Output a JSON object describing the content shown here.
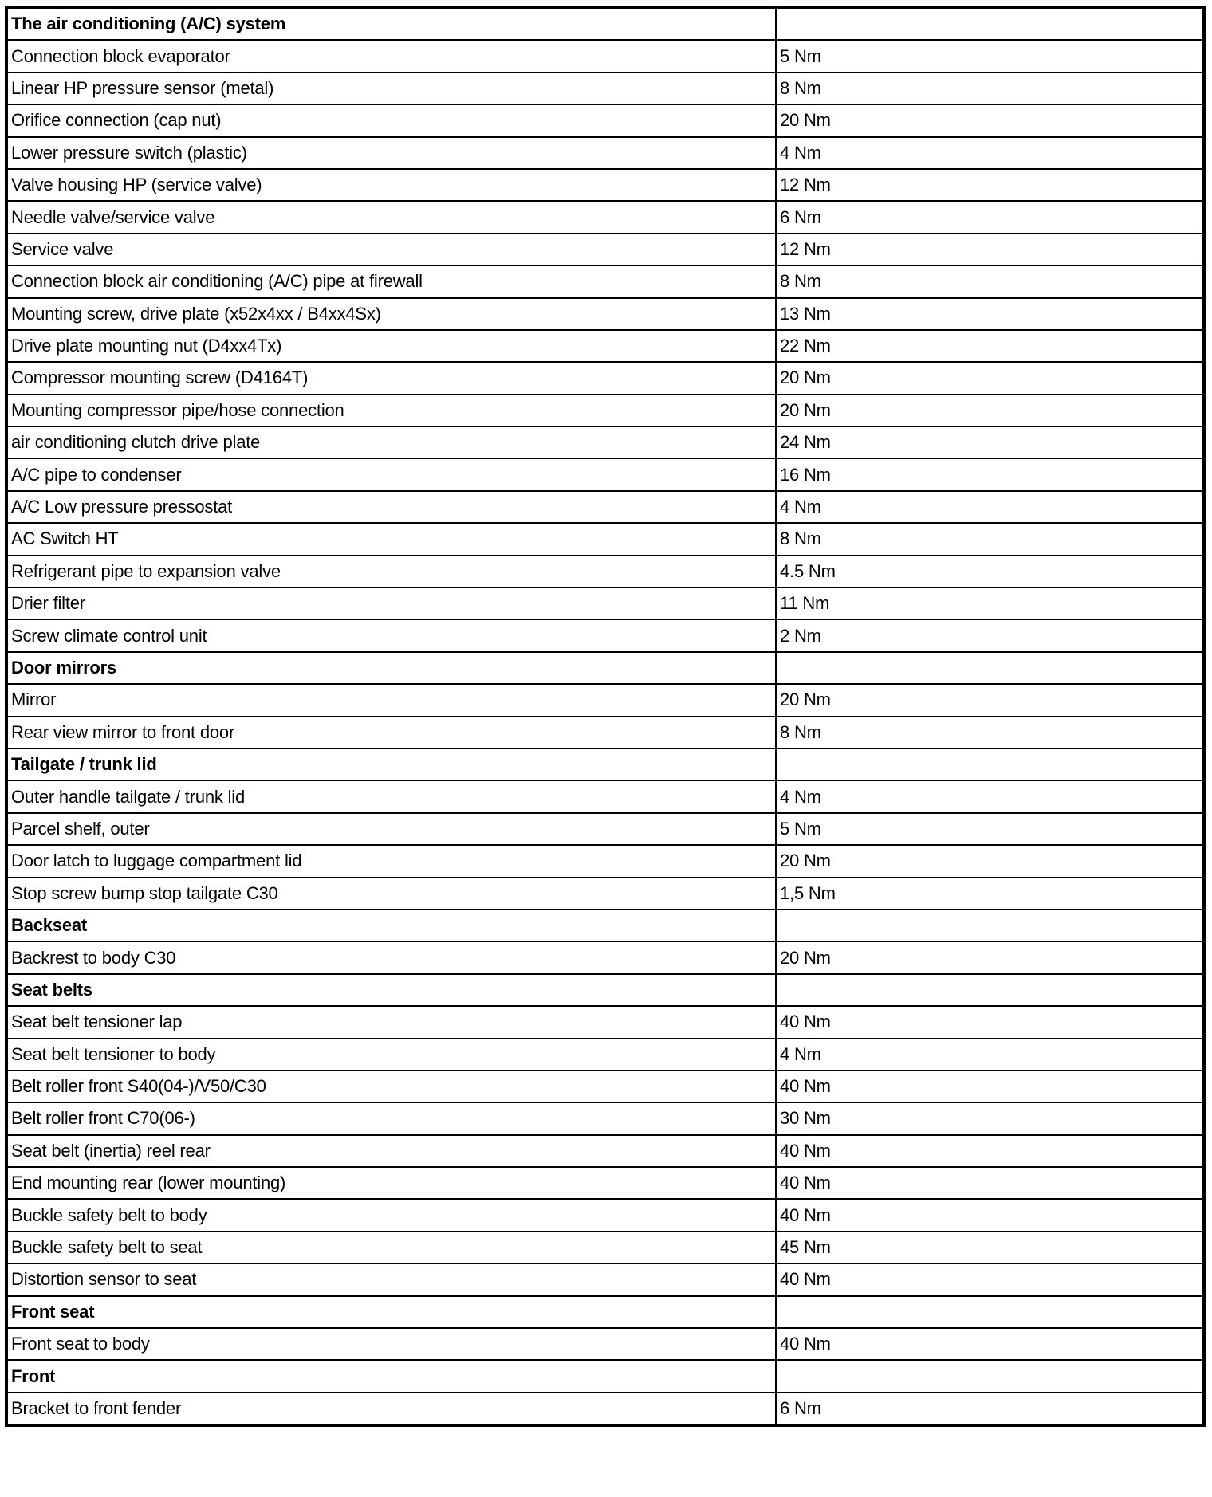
{
  "rows": [
    {
      "type": "section",
      "label": "The air conditioning (A/C) system",
      "value": ""
    },
    {
      "type": "item",
      "label": "Connection block evaporator",
      "value": "5 Nm"
    },
    {
      "type": "item",
      "label": "Linear HP pressure sensor (metal)",
      "value": "8 Nm"
    },
    {
      "type": "item",
      "label": "Orifice connection (cap nut)",
      "value": "20 Nm"
    },
    {
      "type": "item",
      "label": "Lower pressure switch (plastic)",
      "value": "4 Nm"
    },
    {
      "type": "item",
      "label": "Valve housing HP (service valve)",
      "value": "12 Nm"
    },
    {
      "type": "item",
      "label": "Needle valve/service valve",
      "value": "6 Nm"
    },
    {
      "type": "item",
      "label": "Service valve",
      "value": "12 Nm"
    },
    {
      "type": "item",
      "label": "Connection block air conditioning (A/C) pipe at firewall",
      "value": "8 Nm"
    },
    {
      "type": "item",
      "label": "Mounting screw, drive plate (x52x4xx / B4xx4Sx)",
      "value": "13 Nm"
    },
    {
      "type": "item",
      "label": "Drive plate mounting nut (D4xx4Tx)",
      "value": "22 Nm"
    },
    {
      "type": "item",
      "label": "Compressor mounting screw (D4164T)",
      "value": "20 Nm"
    },
    {
      "type": "item",
      "label": "Mounting compressor pipe/hose connection",
      "value": "20 Nm"
    },
    {
      "type": "item",
      "label": "air conditioning clutch drive plate",
      "value": "24 Nm"
    },
    {
      "type": "item",
      "label": "A/C pipe to condenser",
      "value": "16 Nm"
    },
    {
      "type": "item",
      "label": "A/C Low pressure pressostat",
      "value": "4 Nm"
    },
    {
      "type": "item",
      "label": "AC Switch HT",
      "value": "8 Nm"
    },
    {
      "type": "item",
      "label": "Refrigerant pipe to expansion valve",
      "value": "4.5 Nm"
    },
    {
      "type": "item",
      "label": "Drier filter",
      "value": "11 Nm"
    },
    {
      "type": "item",
      "label": "Screw climate control unit",
      "value": "2 Nm"
    },
    {
      "type": "section",
      "label": "Door mirrors",
      "value": ""
    },
    {
      "type": "item",
      "label": "Mirror",
      "value": "20 Nm"
    },
    {
      "type": "item",
      "label": "Rear view mirror to front door",
      "value": "8 Nm"
    },
    {
      "type": "section",
      "label": "Tailgate / trunk lid",
      "value": ""
    },
    {
      "type": "item",
      "label": "Outer handle tailgate / trunk lid",
      "value": "4 Nm"
    },
    {
      "type": "item",
      "label": "Parcel shelf, outer",
      "value": "5 Nm"
    },
    {
      "type": "item",
      "label": "Door latch to luggage compartment lid",
      "value": "20 Nm"
    },
    {
      "type": "item",
      "label": "Stop screw bump stop tailgate C30",
      "value": "1,5 Nm"
    },
    {
      "type": "section",
      "label": "Backseat",
      "value": ""
    },
    {
      "type": "item",
      "label": "Backrest to body C30",
      "value": "20 Nm"
    },
    {
      "type": "section",
      "label": "Seat belts",
      "value": ""
    },
    {
      "type": "item",
      "label": "Seat belt tensioner lap",
      "value": "40 Nm"
    },
    {
      "type": "item",
      "label": "Seat belt tensioner to body",
      "value": "4 Nm"
    },
    {
      "type": "item",
      "label": "Belt roller front S40(04-)/V50/C30",
      "value": "40 Nm"
    },
    {
      "type": "item",
      "label": "Belt roller front C70(06-)",
      "value": "30 Nm"
    },
    {
      "type": "item",
      "label": "Seat belt (inertia) reel rear",
      "value": "40 Nm"
    },
    {
      "type": "item",
      "label": "End mounting rear (lower mounting)",
      "value": "40 Nm"
    },
    {
      "type": "item",
      "label": "Buckle safety belt to body",
      "value": "40 Nm"
    },
    {
      "type": "item",
      "label": "Buckle safety belt to seat",
      "value": "45 Nm"
    },
    {
      "type": "item",
      "label": "Distortion sensor to seat",
      "value": "40 Nm"
    },
    {
      "type": "section",
      "label": "Front seat",
      "value": ""
    },
    {
      "type": "item",
      "label": "Front seat to body",
      "value": "40 Nm"
    },
    {
      "type": "section",
      "label": "Front",
      "value": ""
    },
    {
      "type": "item",
      "label": "Bracket to front fender",
      "value": "6 Nm"
    }
  ]
}
